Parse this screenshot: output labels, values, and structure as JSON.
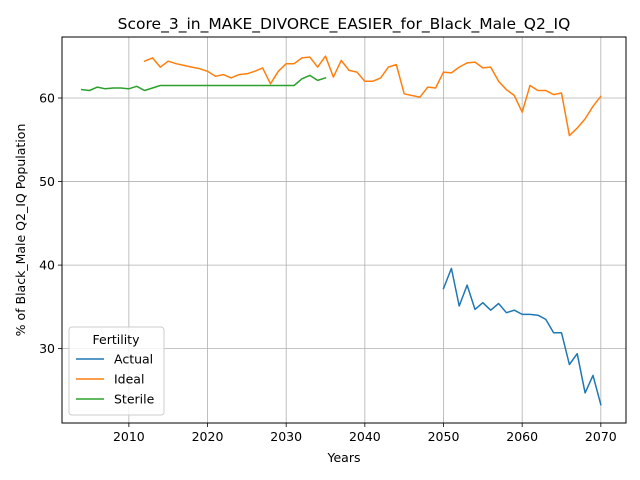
{
  "chart_data": {
    "type": "line",
    "title": "Score_3_in_MAKE_DIVORCE_EASIER_for_Black_Male_Q2_IQ",
    "xlabel": "Years",
    "ylabel": "% of Black_Male Q2_IQ Population",
    "xlim": [
      2001.5,
      2073.2
    ],
    "ylim": [
      21.1,
      67.3
    ],
    "xticks": [
      2010,
      2020,
      2030,
      2040,
      2050,
      2060,
      2070
    ],
    "yticks": [
      30,
      40,
      50,
      60
    ],
    "grid": true,
    "legend": {
      "title": "Fertility",
      "position": "lower-left"
    },
    "series": [
      {
        "name": "Actual",
        "color": "#1f77b4",
        "x": [
          2050,
          2051,
          2052,
          2053,
          2054,
          2055,
          2056,
          2057,
          2058,
          2059,
          2060,
          2061,
          2062,
          2063,
          2064,
          2065,
          2066,
          2067,
          2068,
          2069,
          2070
        ],
        "y": [
          37.2,
          39.6,
          35.1,
          37.6,
          34.7,
          35.5,
          34.6,
          35.4,
          34.3,
          34.6,
          34.1,
          34.1,
          34.0,
          33.5,
          31.9,
          31.9,
          28.1,
          29.4,
          24.7,
          26.8,
          23.3
        ]
      },
      {
        "name": "Ideal",
        "color": "#ff7f0e",
        "x": [
          2012,
          2013,
          2014,
          2015,
          2016,
          2017,
          2018,
          2019,
          2020,
          2021,
          2022,
          2023,
          2024,
          2025,
          2026,
          2027,
          2028,
          2029,
          2030,
          2031,
          2032,
          2033,
          2034,
          2035,
          2036,
          2037,
          2038,
          2039,
          2040,
          2041,
          2042,
          2043,
          2044,
          2045,
          2046,
          2047,
          2048,
          2049,
          2050,
          2051,
          2052,
          2053,
          2054,
          2055,
          2056,
          2057,
          2058,
          2059,
          2060,
          2061,
          2062,
          2063,
          2064,
          2065,
          2066,
          2067,
          2068,
          2069,
          2070
        ],
        "y": [
          64.4,
          64.8,
          63.7,
          64.4,
          64.1,
          63.9,
          63.7,
          63.5,
          63.2,
          62.6,
          62.8,
          62.4,
          62.8,
          62.9,
          63.2,
          63.6,
          61.7,
          63.2,
          64.1,
          64.1,
          64.8,
          64.9,
          63.7,
          65.0,
          62.5,
          64.5,
          63.3,
          63.1,
          62.0,
          62.0,
          62.4,
          63.7,
          64.0,
          60.5,
          60.3,
          60.1,
          61.3,
          61.2,
          63.1,
          63.0,
          63.7,
          64.2,
          64.3,
          63.6,
          63.7,
          62.0,
          61.0,
          60.3,
          58.3,
          61.5,
          60.9,
          60.9,
          60.4,
          60.6,
          55.5,
          56.4,
          57.5,
          59.0,
          60.2
        ]
      },
      {
        "name": "Sterile",
        "color": "#2ca02c",
        "x": [
          2004,
          2005,
          2006,
          2007,
          2008,
          2009,
          2010,
          2011,
          2012,
          2013,
          2014,
          2015,
          2016,
          2017,
          2018,
          2019,
          2020,
          2021,
          2022,
          2023,
          2024,
          2025,
          2026,
          2027,
          2028,
          2029,
          2030,
          2031,
          2032,
          2033,
          2034,
          2035
        ],
        "y": [
          61.0,
          60.9,
          61.3,
          61.1,
          61.2,
          61.2,
          61.1,
          61.4,
          60.9,
          61.2,
          61.5,
          61.5,
          61.5,
          61.5,
          61.5,
          61.5,
          61.5,
          61.5,
          61.5,
          61.5,
          61.5,
          61.5,
          61.5,
          61.5,
          61.5,
          61.5,
          61.5,
          61.5,
          62.3,
          62.7,
          62.1,
          62.4
        ]
      }
    ]
  }
}
